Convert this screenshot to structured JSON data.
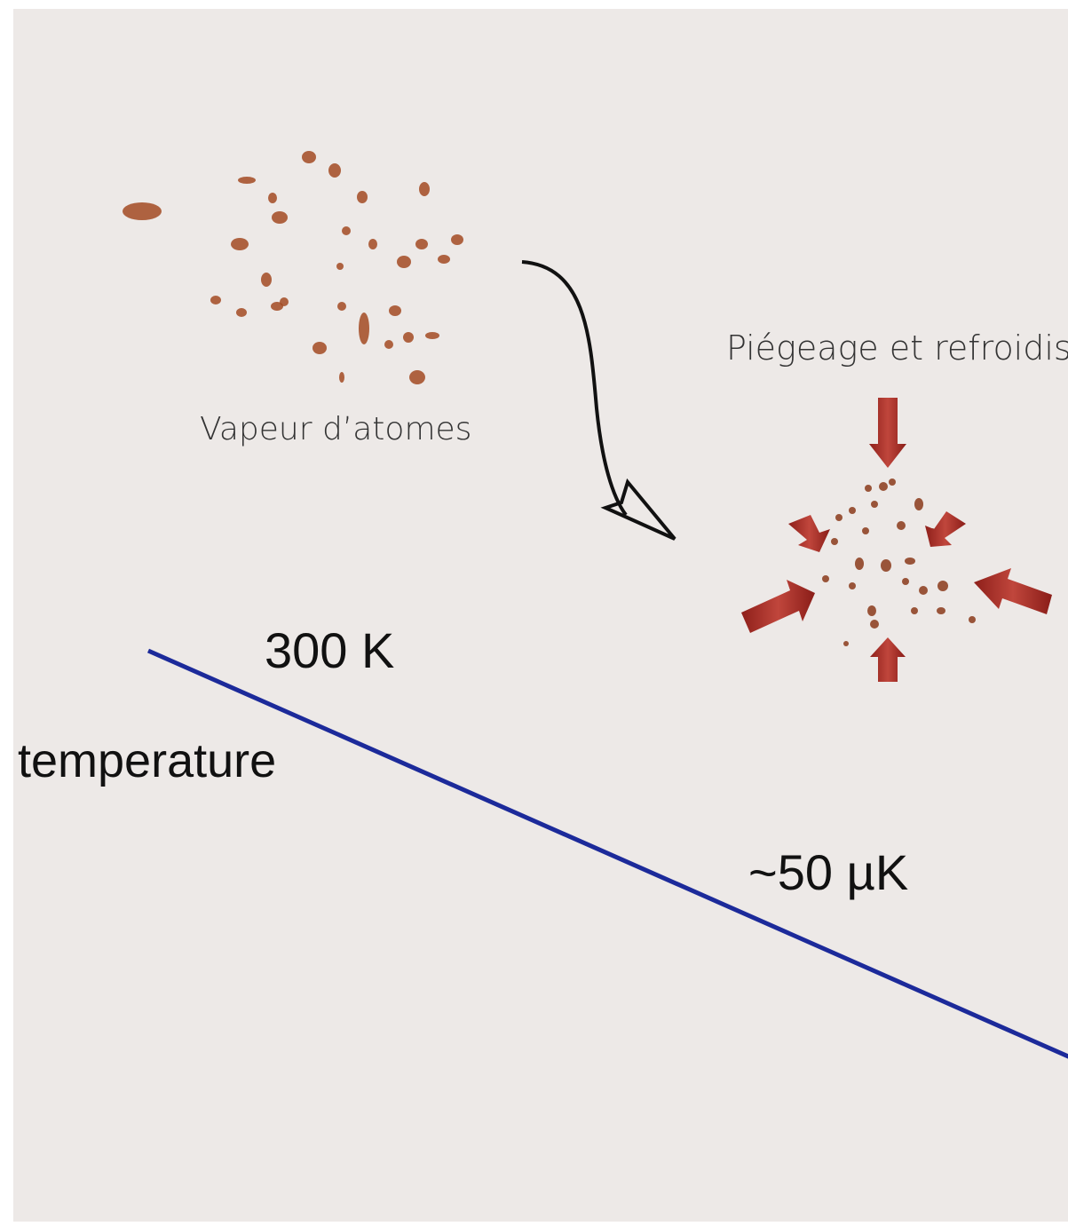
{
  "labels": {
    "vapor": "Vapeur d’atomes",
    "trapping": "Piégeage et refroidissement",
    "high_temp": "300 K",
    "axis": "temperature",
    "low_temp": "~50 µK"
  }
}
